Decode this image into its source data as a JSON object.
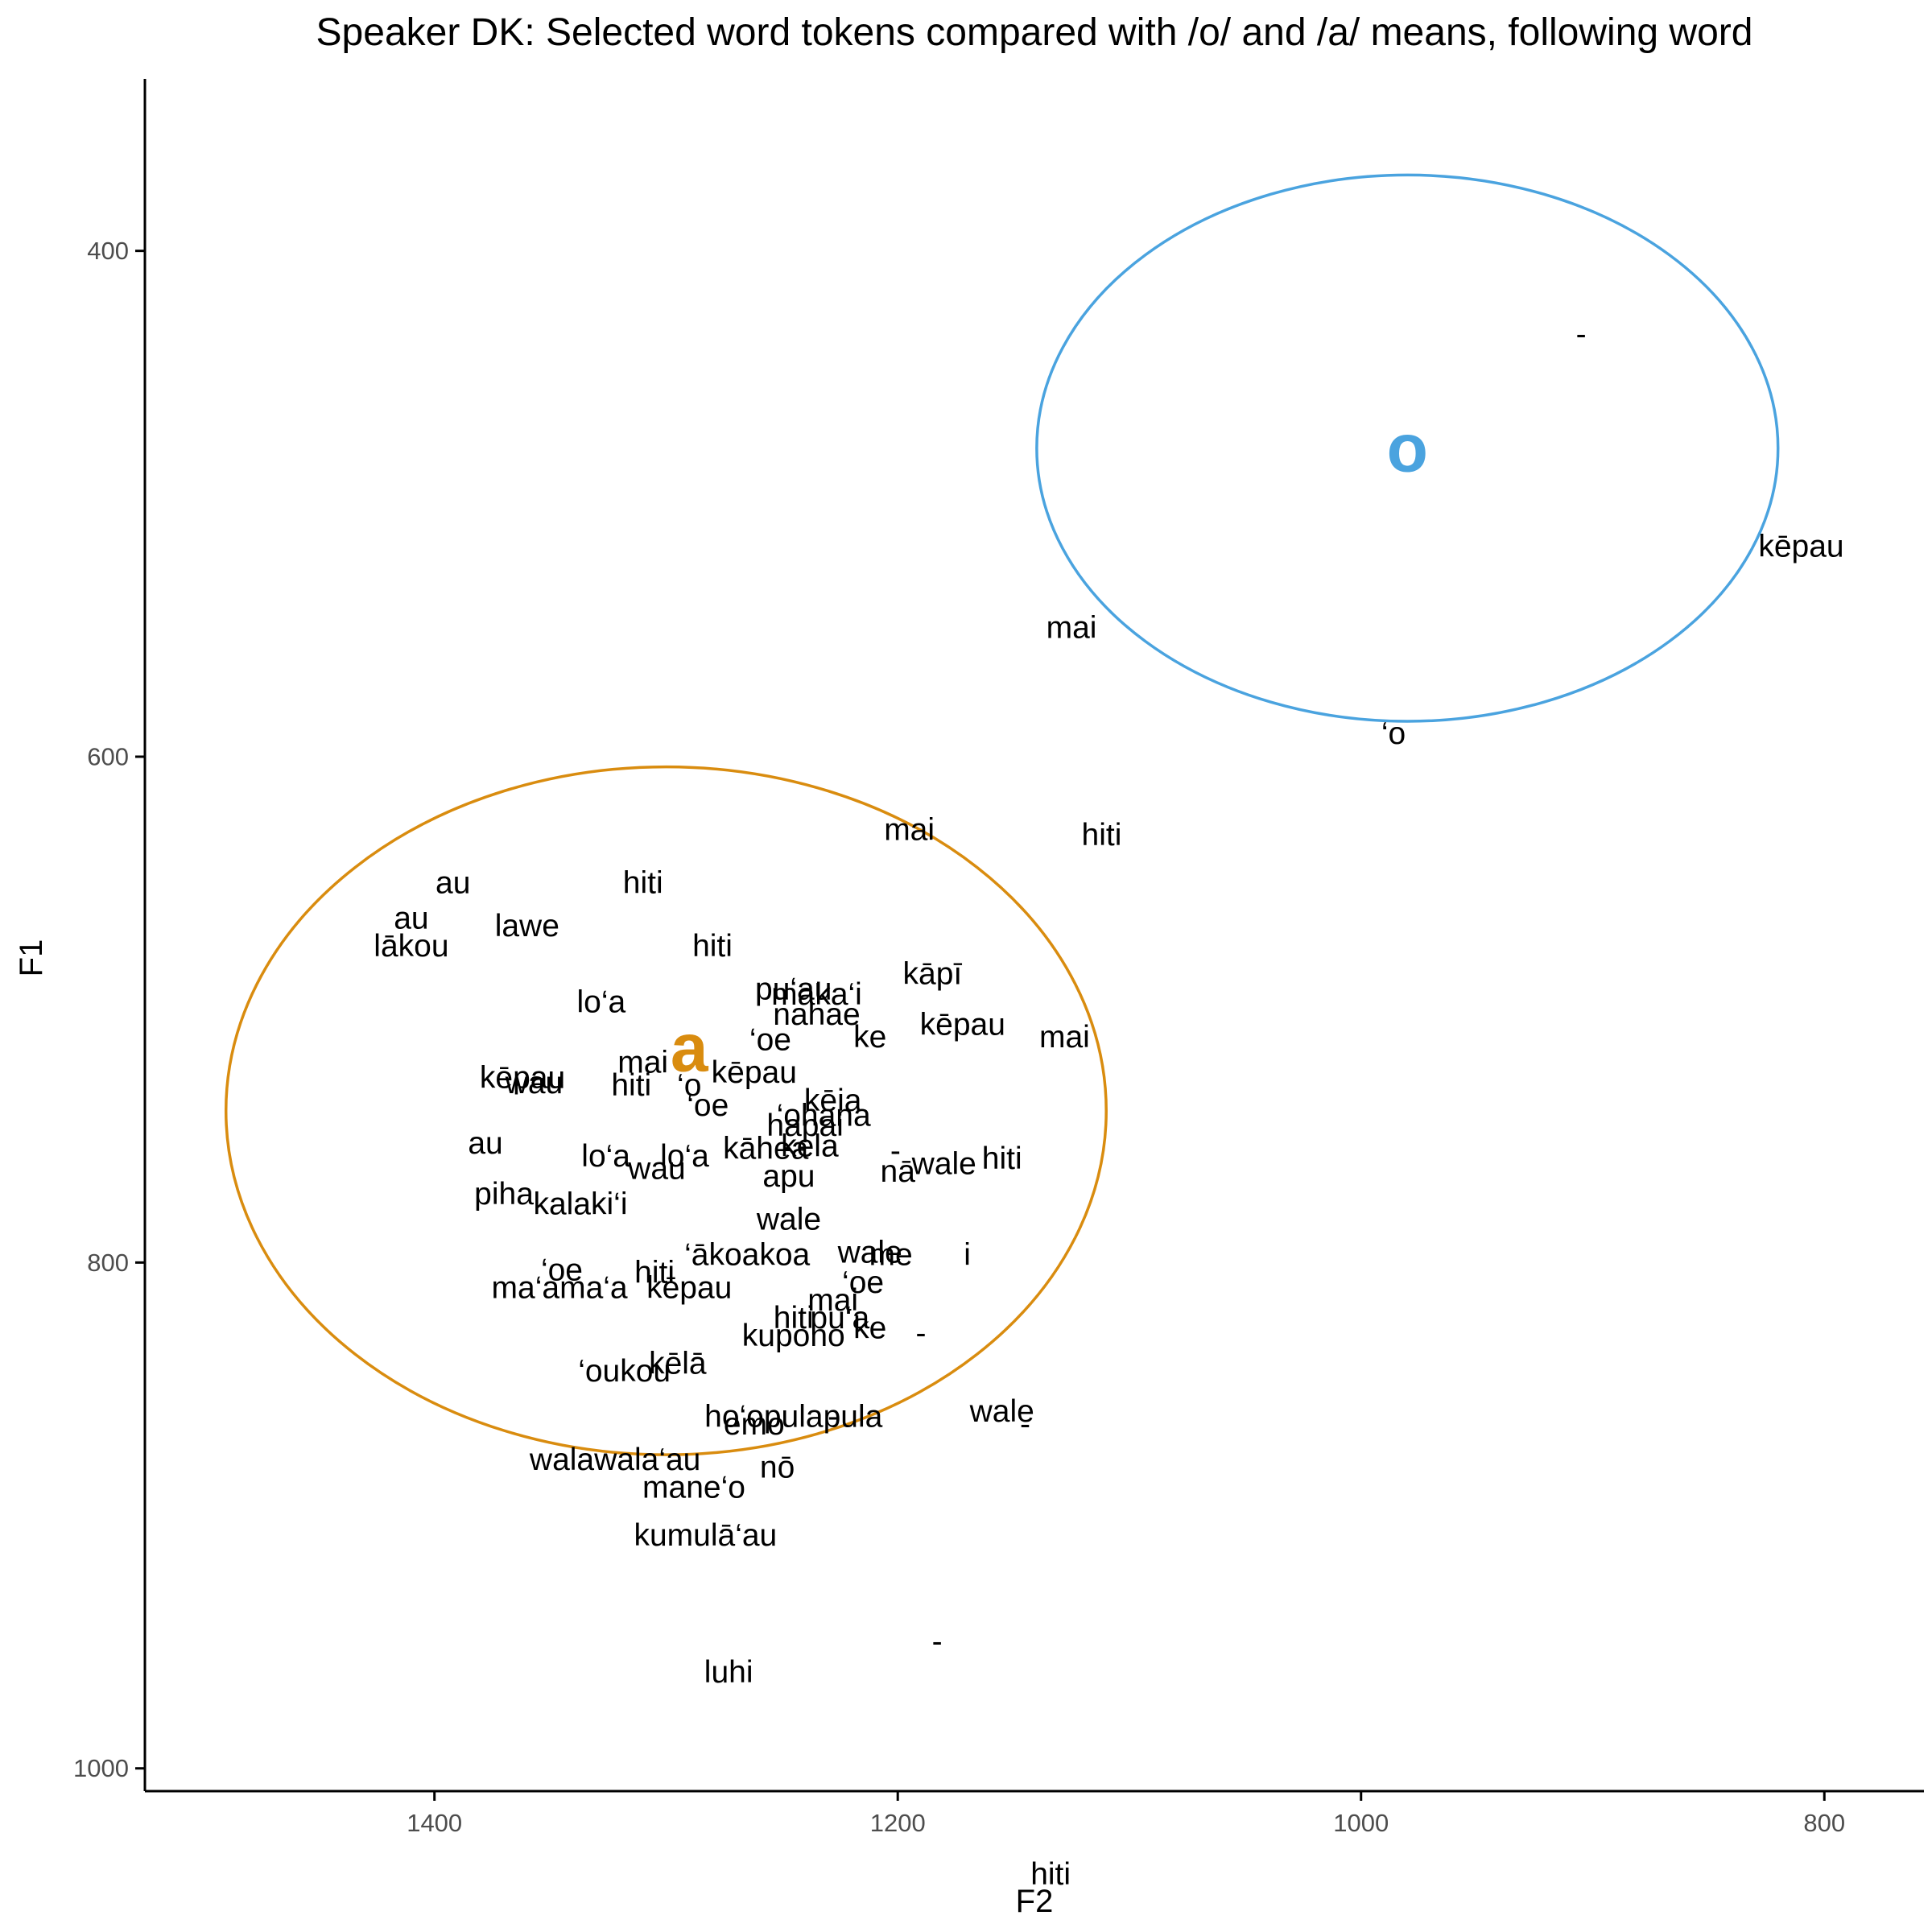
{
  "chart_data": {
    "type": "scatter",
    "title": "Speaker DK: Selected word tokens compared with /o/ and /a/ means, following word",
    "xlabel": "F2",
    "ylabel": "F1",
    "x_reversed": true,
    "y_reversed": true,
    "xlim": [
      1525,
      757
    ],
    "ylim": [
      332,
      1009
    ],
    "x_ticks": [
      1400,
      1200,
      1000,
      800
    ],
    "y_ticks": [
      400,
      600,
      800,
      1000
    ],
    "grid": false,
    "legend": "none",
    "colors": {
      "o": "#4aa3df",
      "a": "#d98c0f",
      "text": "#000000",
      "tick": "#4d4d4d"
    },
    "vowel_means": [
      {
        "label": "o",
        "F2": 980,
        "F1": 478,
        "color": "#4aa3df"
      },
      {
        "label": "a",
        "F2": 1290,
        "F1": 715,
        "color": "#d98c0f"
      }
    ],
    "ellipses": [
      {
        "vowel": "o",
        "F2_center": 980,
        "F1_center": 478,
        "F2_radius": 160,
        "F1_radius": 108,
        "color": "#4aa3df"
      },
      {
        "vowel": "a",
        "F2_center": 1300,
        "F1_center": 740,
        "F2_radius": 190,
        "F1_radius": 136,
        "color": "#d98c0f"
      }
    ],
    "tokens": [
      {
        "word": "-",
        "F2": 905,
        "F1": 433
      },
      {
        "word": "kēpau",
        "F2": 810,
        "F1": 517
      },
      {
        "word": "mai",
        "F2": 1125,
        "F1": 549
      },
      {
        "word": "‘o",
        "F2": 986,
        "F1": 591
      },
      {
        "word": "mai",
        "F2": 1195,
        "F1": 629
      },
      {
        "word": "hiti",
        "F2": 1112,
        "F1": 631
      },
      {
        "word": "au",
        "F2": 1392,
        "F1": 650
      },
      {
        "word": "hiti",
        "F2": 1310,
        "F1": 650
      },
      {
        "word": "au",
        "F2": 1410,
        "F1": 664
      },
      {
        "word": "lawe",
        "F2": 1360,
        "F1": 667
      },
      {
        "word": "lākou",
        "F2": 1410,
        "F1": 675
      },
      {
        "word": "hiti",
        "F2": 1280,
        "F1": 675
      },
      {
        "word": "kāpī",
        "F2": 1185,
        "F1": 686
      },
      {
        "word": "lo‘a",
        "F2": 1328,
        "F1": 697
      },
      {
        "word": "pu‘au",
        "F2": 1245,
        "F1": 692
      },
      {
        "word": "maka‘i",
        "F2": 1235,
        "F1": 694
      },
      {
        "word": "nahae",
        "F2": 1235,
        "F1": 702
      },
      {
        "word": "kēpau",
        "F2": 1172,
        "F1": 706
      },
      {
        "word": "‘oe",
        "F2": 1255,
        "F1": 712
      },
      {
        "word": "ke",
        "F2": 1212,
        "F1": 711
      },
      {
        "word": "mai",
        "F2": 1128,
        "F1": 711
      },
      {
        "word": "mai",
        "F2": 1310,
        "F1": 721
      },
      {
        "word": "kēpau",
        "F2": 1362,
        "F1": 727
      },
      {
        "word": "wau",
        "F2": 1357,
        "F1": 729
      },
      {
        "word": "hiti",
        "F2": 1315,
        "F1": 730
      },
      {
        "word": "‘o",
        "F2": 1290,
        "F1": 730
      },
      {
        "word": "kēpau",
        "F2": 1262,
        "F1": 725
      },
      {
        "word": "‘oe",
        "F2": 1282,
        "F1": 738
      },
      {
        "word": "kēia",
        "F2": 1228,
        "F1": 736
      },
      {
        "word": "‘ohana",
        "F2": 1232,
        "F1": 742
      },
      {
        "word": "hapai",
        "F2": 1240,
        "F1": 746
      },
      {
        "word": "au",
        "F2": 1378,
        "F1": 753
      },
      {
        "word": "lo‘a",
        "F2": 1326,
        "F1": 758
      },
      {
        "word": "lo‘a",
        "F2": 1292,
        "F1": 758
      },
      {
        "word": "wau",
        "F2": 1304,
        "F1": 763
      },
      {
        "word": "kāhea",
        "F2": 1257,
        "F1": 755
      },
      {
        "word": "kela",
        "F2": 1238,
        "F1": 754
      },
      {
        "word": "apu",
        "F2": 1247,
        "F1": 766
      },
      {
        "word": "nā",
        "F2": 1200,
        "F1": 764
      },
      {
        "word": "-",
        "F2": 1201,
        "F1": 756
      },
      {
        "word": "wale",
        "F2": 1180,
        "F1": 761
      },
      {
        "word": "hiti",
        "F2": 1155,
        "F1": 759
      },
      {
        "word": "piha",
        "F2": 1370,
        "F1": 773
      },
      {
        "word": "kalaki‘i",
        "F2": 1337,
        "F1": 777
      },
      {
        "word": "wale",
        "F2": 1247,
        "F1": 783
      },
      {
        "word": "‘ākoakoa",
        "F2": 1265,
        "F1": 797
      },
      {
        "word": "wale",
        "F2": 1212,
        "F1": 796
      },
      {
        "word": "me",
        "F2": 1203,
        "F1": 797
      },
      {
        "word": "i",
        "F2": 1170,
        "F1": 797
      },
      {
        "word": "‘oe",
        "F2": 1345,
        "F1": 803
      },
      {
        "word": "hiti",
        "F2": 1305,
        "F1": 804
      },
      {
        "word": "ma‘ama‘a",
        "F2": 1346,
        "F1": 810
      },
      {
        "word": "kēpau",
        "F2": 1290,
        "F1": 810
      },
      {
        "word": "‘oe",
        "F2": 1215,
        "F1": 808
      },
      {
        "word": "mai",
        "F2": 1228,
        "F1": 815
      },
      {
        "word": "hiti",
        "F2": 1245,
        "F1": 822
      },
      {
        "word": "pu‘a",
        "F2": 1225,
        "F1": 822
      },
      {
        "word": "ke",
        "F2": 1212,
        "F1": 826
      },
      {
        "word": "kupono",
        "F2": 1245,
        "F1": 829
      },
      {
        "word": "-",
        "F2": 1190,
        "F1": 828
      },
      {
        "word": "kēlā",
        "F2": 1295,
        "F1": 840
      },
      {
        "word": "‘oukou",
        "F2": 1318,
        "F1": 843
      },
      {
        "word": "ho‘opulapula",
        "F2": 1245,
        "F1": 861
      },
      {
        "word": "emo",
        "F2": 1262,
        "F1": 864
      },
      {
        "word": "-",
        "F2": 1228,
        "F1": 861
      },
      {
        "word": "wale",
        "F2": 1155,
        "F1": 859
      },
      {
        "word": "-",
        "F2": 1145,
        "F1": 864
      },
      {
        "word": "walawala‘au",
        "F2": 1322,
        "F1": 878
      },
      {
        "word": "nō",
        "F2": 1252,
        "F1": 881
      },
      {
        "word": "mane‘o",
        "F2": 1288,
        "F1": 889
      },
      {
        "word": "kumulā‘au",
        "F2": 1283,
        "F1": 908
      },
      {
        "word": "-",
        "F2": 1183,
        "F1": 950
      },
      {
        "word": "luhi",
        "F2": 1273,
        "F1": 962
      },
      {
        "word": "hiti",
        "F2": 1134,
        "F1": 1042
      }
    ]
  }
}
